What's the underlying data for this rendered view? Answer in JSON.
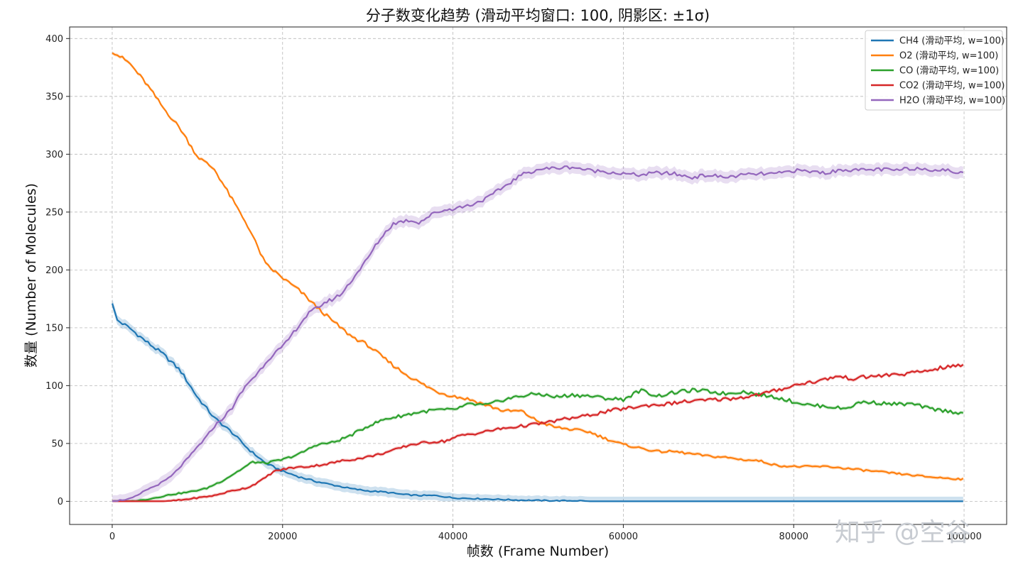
{
  "chart_data": {
    "type": "line",
    "title": "分子数变化趋势 (滑动平均窗口: 100, 阴影区: ±1σ)",
    "xlabel": "帧数 (Frame Number)",
    "ylabel": "数量 (Number of Molecules)",
    "xlim": [
      -5000,
      105000
    ],
    "ylim": [
      -20,
      410
    ],
    "xticks": [
      0,
      20000,
      40000,
      60000,
      80000,
      100000
    ],
    "yticks": [
      0,
      50,
      100,
      150,
      200,
      250,
      300,
      350,
      400
    ],
    "xtick_labels": [
      "0",
      "20000",
      "40000",
      "60000",
      "80000",
      "100000"
    ],
    "ytick_labels": [
      "0",
      "50",
      "100",
      "150",
      "200",
      "250",
      "300",
      "350",
      "400"
    ],
    "grid": true,
    "legend_position": "top-right",
    "shaded_band": "±1σ",
    "series": [
      {
        "name": "CH4 (滑动平均, w=100)",
        "color": "#1f77b4",
        "sigma": 4,
        "x": [
          0,
          500,
          2000,
          4000,
          6000,
          8000,
          10000,
          12000,
          14000,
          16000,
          18000,
          20000,
          22000,
          24000,
          26000,
          28000,
          30000,
          32000,
          34000,
          36000,
          38000,
          40000,
          44000,
          48000,
          52000,
          55000,
          56000,
          60000,
          70000,
          80000,
          90000,
          100000
        ],
        "y": [
          172,
          157,
          150,
          138,
          127,
          113,
          90,
          72,
          60,
          45,
          33,
          26,
          21,
          17,
          14,
          11,
          9,
          8,
          6,
          5,
          5,
          3,
          2,
          1,
          0.5,
          0.5,
          0,
          0,
          0,
          0,
          0,
          0
        ]
      },
      {
        "name": "O2 (滑动平均, w=100)",
        "color": "#ff7f0e",
        "sigma": 1.5,
        "x": [
          0,
          2000,
          4000,
          6000,
          8000,
          10000,
          12000,
          14000,
          16000,
          18000,
          20000,
          22000,
          24000,
          26000,
          28000,
          30000,
          32000,
          34000,
          36000,
          38000,
          40000,
          42000,
          44000,
          46000,
          48000,
          50000,
          52000,
          54000,
          56000,
          58000,
          60000,
          62000,
          64000,
          66000,
          68000,
          70000,
          72000,
          74000,
          76000,
          78000,
          80000,
          84000,
          88000,
          92000,
          96000,
          100000
        ],
        "y": [
          389,
          379,
          361,
          340,
          322,
          298,
          287,
          262,
          237,
          205,
          193,
          182,
          168,
          155,
          143,
          135,
          123,
          112,
          103,
          95,
          91,
          88,
          83,
          78,
          78,
          69,
          64,
          62,
          60,
          54,
          49,
          46,
          43,
          43,
          41,
          39,
          38,
          36,
          35,
          31,
          30,
          30,
          27,
          24,
          21,
          19
        ]
      },
      {
        "name": "CO (滑动平均, w=100)",
        "color": "#2ca02c",
        "sigma": 1.5,
        "x": [
          0,
          2000,
          3500,
          5000,
          7000,
          9000,
          11000,
          13000,
          15000,
          16500,
          18000,
          20000,
          22000,
          24000,
          26000,
          28000,
          30000,
          32000,
          34000,
          36000,
          38000,
          40000,
          42000,
          44000,
          46000,
          48000,
          50000,
          52000,
          54000,
          56000,
          58000,
          60000,
          62000,
          64000,
          66000,
          68000,
          70000,
          72000,
          74000,
          76000,
          78000,
          80000,
          82000,
          84000,
          86000,
          88000,
          90000,
          92000,
          94000,
          96000,
          98000,
          100000
        ],
        "y": [
          0,
          0,
          1,
          3,
          6,
          8,
          11,
          18,
          27,
          34,
          33,
          36,
          41,
          49,
          51,
          57,
          65,
          71,
          74,
          77,
          79,
          79,
          84,
          83,
          88,
          91,
          93,
          90,
          92,
          91,
          89,
          88,
          96,
          91,
          94,
          96,
          95,
          93,
          95,
          92,
          90,
          86,
          83,
          82,
          80,
          86,
          85,
          84,
          84,
          80,
          78,
          76
        ]
      },
      {
        "name": "CO2 (滑动平均, w=100)",
        "color": "#d62728",
        "sigma": 1.5,
        "x": [
          0,
          4000,
          6000,
          8000,
          10000,
          12000,
          14000,
          16000,
          17500,
          19000,
          21000,
          23000,
          25000,
          27000,
          29000,
          31000,
          33000,
          35000,
          37000,
          39000,
          41000,
          43000,
          45000,
          47000,
          49000,
          51000,
          53000,
          55000,
          57000,
          59000,
          61000,
          63000,
          65000,
          67000,
          69000,
          71000,
          73000,
          75000,
          77000,
          79000,
          81000,
          83000,
          85000,
          87000,
          89000,
          91000,
          93000,
          95000,
          97000,
          99000,
          100000
        ],
        "y": [
          0,
          0,
          0,
          1,
          3,
          5,
          9,
          12,
          18,
          26,
          29,
          30,
          32,
          35,
          37,
          40,
          44,
          49,
          51,
          52,
          57,
          59,
          62,
          64,
          66,
          68,
          71,
          73,
          76,
          79,
          81,
          83,
          84,
          86,
          87,
          88,
          89,
          91,
          94,
          98,
          102,
          104,
          108,
          106,
          108,
          109,
          110,
          112,
          115,
          117,
          118
        ]
      },
      {
        "name": "H2O (滑动平均, w=100)",
        "color": "#9467bd",
        "sigma": 5,
        "x": [
          0,
          1000,
          2000,
          3000,
          4000,
          5000,
          6000,
          7000,
          8000,
          9000,
          10000,
          11000,
          12000,
          13000,
          14000,
          15000,
          16000,
          17000,
          18000,
          19000,
          20000,
          21000,
          22000,
          23000,
          24000,
          25000,
          26000,
          27000,
          28000,
          29000,
          30000,
          31000,
          32000,
          33000,
          34000,
          35000,
          36000,
          38000,
          40000,
          42000,
          44000,
          46000,
          48000,
          50000,
          52000,
          54000,
          56000,
          58000,
          60000,
          62000,
          64000,
          66000,
          68000,
          70000,
          72000,
          74000,
          76000,
          78000,
          80000,
          82000,
          84000,
          86000,
          88000,
          90000,
          92000,
          94000,
          96000,
          98000,
          100000
        ],
        "y": [
          0,
          1,
          2,
          5,
          10,
          13,
          17,
          22,
          30,
          38,
          47,
          55,
          65,
          72,
          80,
          92,
          103,
          110,
          120,
          128,
          133,
          143,
          153,
          162,
          167,
          172,
          175,
          180,
          190,
          200,
          210,
          222,
          232,
          240,
          242,
          243,
          241,
          250,
          253,
          256,
          262,
          272,
          282,
          287,
          288,
          289,
          286,
          285,
          283,
          282,
          284,
          283,
          280,
          282,
          280,
          282,
          283,
          283,
          286,
          285,
          284,
          287,
          286,
          287,
          286,
          288,
          287,
          286,
          283
        ]
      }
    ]
  },
  "watermark": "知乎 @空谷"
}
